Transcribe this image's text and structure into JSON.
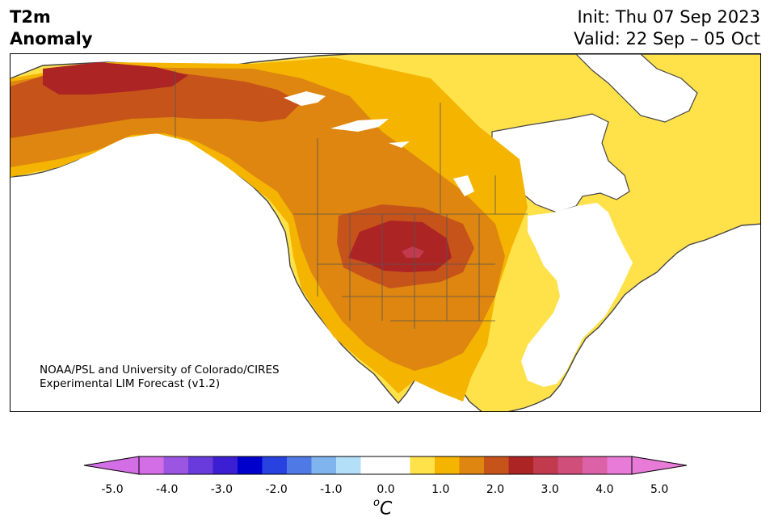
{
  "header": {
    "title_line1": "T2m",
    "title_line2": "Anomaly",
    "init": "Init: Thu 07 Sep 2023",
    "valid": "Valid: 22 Sep – 05 Oct"
  },
  "credit": {
    "line1": "NOAA/PSL and University of Colorado/CIRES",
    "line2": "Experimental LIM Forecast (v1.2)"
  },
  "colorbar": {
    "unit_sup": "o",
    "unit_letter": "C",
    "ticks": [
      "-5.0",
      "-4.0",
      "-3.0",
      "-2.0",
      "-1.0",
      "0.0",
      "1.0",
      "2.0",
      "3.0",
      "4.0",
      "5.0"
    ],
    "under_color": "#d46ee6",
    "over_color": "#e87ad8",
    "colors": [
      "#d46ee6",
      "#9b55e0",
      "#6a3bdc",
      "#3c1fd2",
      "#0000cd",
      "#2842e0",
      "#4f7ae6",
      "#7fb4ee",
      "#b3dff8",
      "#ffffff",
      "#ffffff",
      "#ffe14a",
      "#f4b400",
      "#de860f",
      "#c6531a",
      "#ad2424",
      "#c23a4e",
      "#cf4f7a",
      "#db62a6",
      "#e87ad8"
    ]
  }
}
